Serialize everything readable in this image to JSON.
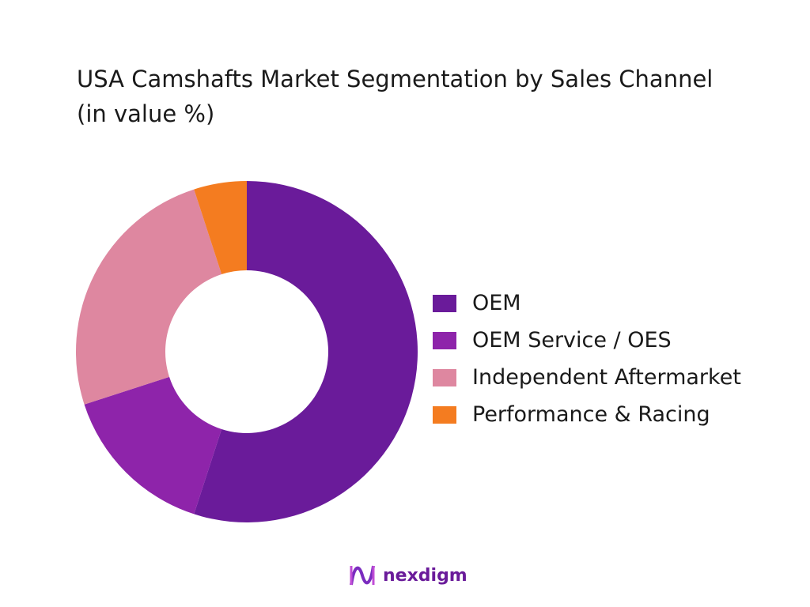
{
  "chart_data": {
    "type": "pie",
    "variant": "donut",
    "title": "USA Camshafts Market Segmentation by Sales Channel (in value %)",
    "categories": [
      "OEM",
      "OEM Service / OES",
      "Independent Aftermarket",
      "Performance & Racing"
    ],
    "values": [
      55,
      15,
      25,
      5
    ],
    "colors": [
      "#6a1b9a",
      "#8e24aa",
      "#de87a0",
      "#f47c20"
    ],
    "legend_position": "right"
  },
  "logo": {
    "text": "nexdigm"
  }
}
